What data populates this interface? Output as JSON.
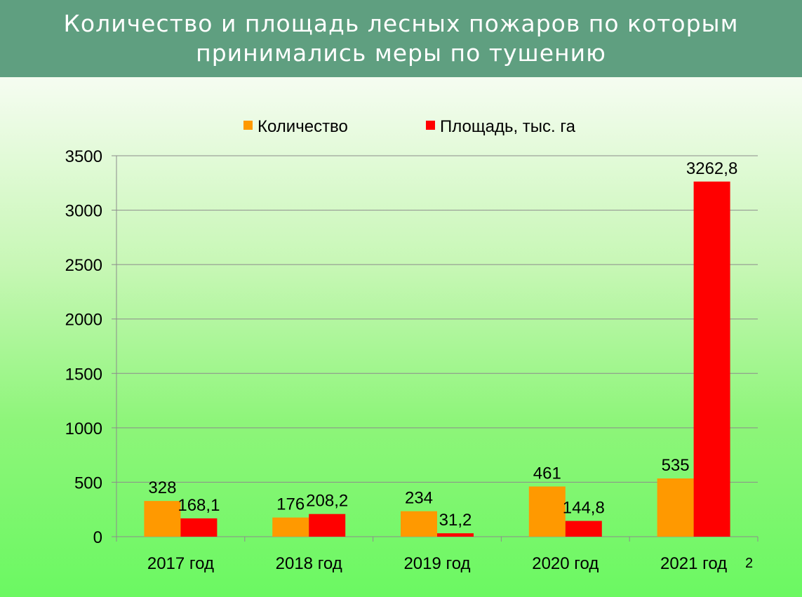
{
  "slide": {
    "title_line1": "Количество и площадь лесных пожаров по которым",
    "title_line2": "принимались меры по тушению",
    "page_number": "2",
    "colors": {
      "header": "#5f9f80",
      "title_text": "#ffffff"
    }
  },
  "chart_data": {
    "type": "bar",
    "title": "",
    "xlabel": "",
    "ylabel": "",
    "categories": [
      "2017 год",
      "2018 год",
      "2019 год",
      "2020 год",
      "2021 год"
    ],
    "series": [
      {
        "name": "Количество",
        "color": "#ff9900",
        "values": [
          328,
          176,
          234,
          461,
          535
        ],
        "labels": [
          "328",
          "176",
          "234",
          "461",
          "535"
        ]
      },
      {
        "name": "Площадь, тыс. га",
        "color": "#ff0000",
        "values": [
          168.1,
          208.2,
          31.2,
          144.8,
          3262.8
        ],
        "labels": [
          "168,1",
          "208,2",
          "31,2",
          "144,8",
          "3262,8"
        ]
      }
    ],
    "ylim": [
      0,
      3500
    ],
    "yticks": [
      "0",
      "500",
      "1000",
      "1500",
      "2000",
      "2500",
      "3000",
      "3500"
    ],
    "grid": true,
    "legend": "top"
  }
}
